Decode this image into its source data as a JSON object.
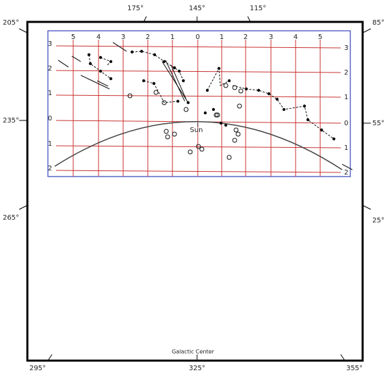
{
  "outer_labels": {
    "top": [
      "175°",
      "145°",
      "115°"
    ],
    "left": [
      "205°",
      "235°",
      "265°"
    ],
    "right": [
      "85°",
      "55°",
      "25°"
    ],
    "bottom": [
      "295°",
      "325°",
      "355°"
    ]
  },
  "grid_labels": {
    "top": [
      "5",
      "4",
      "3",
      "2",
      "1",
      "0",
      "1",
      "2",
      "3",
      "4",
      "5"
    ],
    "left": [
      "3",
      "2",
      "1",
      "0",
      "1",
      "2"
    ],
    "right": [
      "3",
      "2",
      "1",
      "0",
      "1",
      "2"
    ]
  },
  "sun_label": "Sun",
  "bottom_label": "Galactic Center"
}
